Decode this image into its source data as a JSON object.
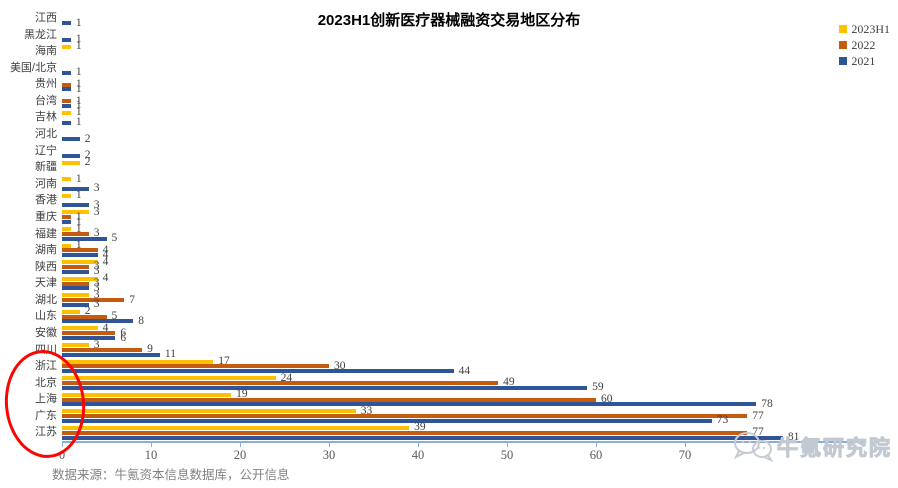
{
  "title": "2023H1创新医疗器械融资交易地区分布",
  "legend": [
    {
      "label": "2023H1",
      "color": "#FFC000"
    },
    {
      "label": "2022",
      "color": "#C55A11"
    },
    {
      "label": "2021",
      "color": "#2F5597"
    }
  ],
  "source_note": "数据来源：牛氪资本信息数据库，公开信息",
  "watermark_text": "牛氪研究院",
  "annotation": {
    "shape": "red-ellipse",
    "color": "#FF0000",
    "circles": [
      "浙江",
      "北京",
      "上海",
      "广东",
      "江苏"
    ]
  },
  "chart_data": {
    "type": "bar",
    "orientation": "horizontal",
    "title": "2023H1创新医疗器械融资交易地区分布",
    "categories": [
      "江西",
      "黑龙江",
      "海南",
      "美国/北京",
      "贵州",
      "台湾",
      "吉林",
      "河北",
      "辽宁",
      "新疆",
      "河南",
      "香港",
      "重庆",
      "福建",
      "湖南",
      "陕西",
      "天津",
      "湖北",
      "山东",
      "安徽",
      "四川",
      "浙江",
      "北京",
      "上海",
      "广东",
      "江苏"
    ],
    "series": [
      {
        "name": "2023H1",
        "color": "#FFC000",
        "values": [
          null,
          null,
          1,
          null,
          null,
          null,
          1,
          null,
          null,
          2,
          1,
          1,
          3,
          1,
          1,
          4,
          4,
          3,
          2,
          4,
          3,
          17,
          24,
          19,
          33,
          39
        ]
      },
      {
        "name": "2022",
        "color": "#C55A11",
        "values": [
          null,
          null,
          null,
          null,
          1,
          1,
          null,
          null,
          null,
          null,
          null,
          null,
          1,
          3,
          4,
          3,
          3,
          7,
          5,
          6,
          9,
          30,
          49,
          60,
          77,
          77
        ]
      },
      {
        "name": "2021",
        "color": "#2F5597",
        "values": [
          1,
          1,
          null,
          1,
          1,
          1,
          1,
          2,
          2,
          null,
          3,
          3,
          1,
          5,
          4,
          3,
          3,
          3,
          8,
          6,
          11,
          44,
          59,
          78,
          73,
          81
        ]
      }
    ],
    "x_ticks": [
      0,
      10,
      20,
      30,
      40,
      50,
      60,
      70
    ],
    "xlim": [
      0,
      90
    ],
    "value_labels": true,
    "grid": false,
    "legend_position": "top-right"
  }
}
